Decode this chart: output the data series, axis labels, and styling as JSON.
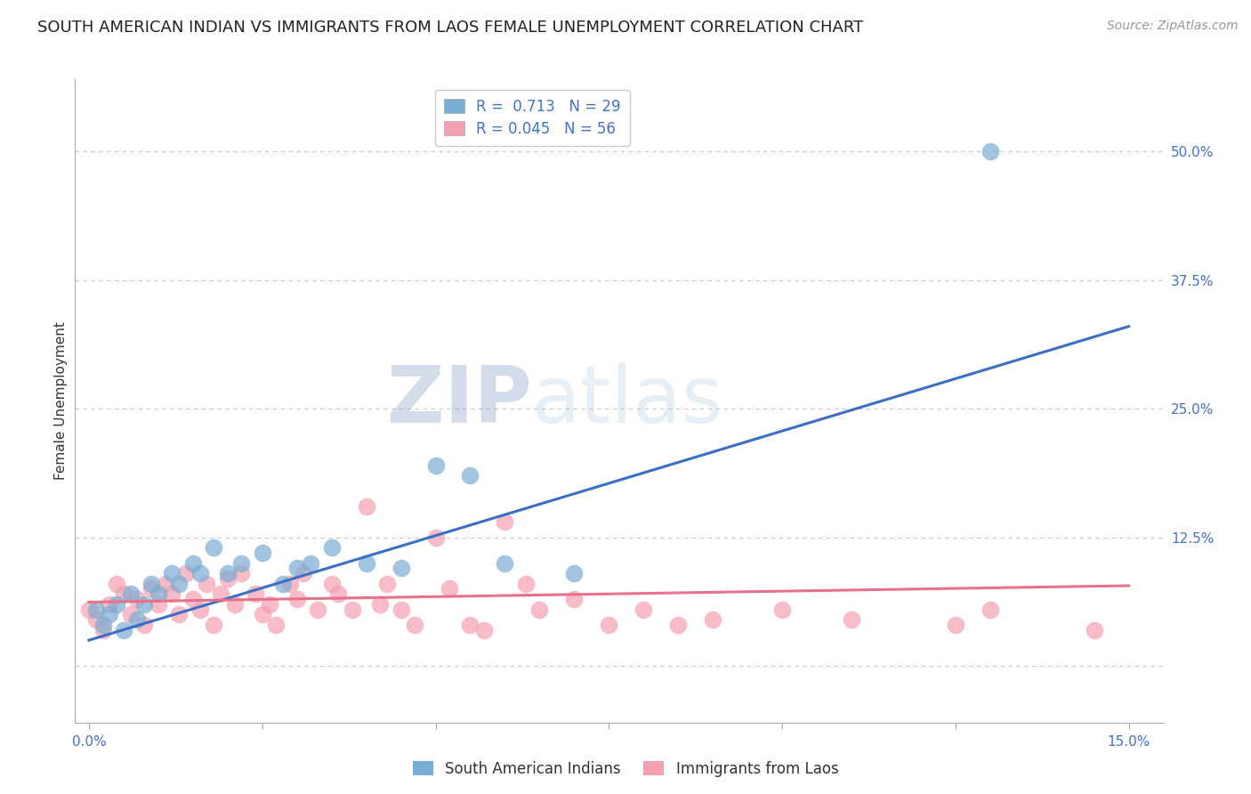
{
  "title": "SOUTH AMERICAN INDIAN VS IMMIGRANTS FROM LAOS FEMALE UNEMPLOYMENT CORRELATION CHART",
  "source": "Source: ZipAtlas.com",
  "ylabel": "Female Unemployment",
  "xlim": [
    -0.002,
    0.155
  ],
  "ylim": [
    -0.055,
    0.57
  ],
  "xticks": [
    0.0,
    0.025,
    0.05,
    0.075,
    0.1,
    0.125,
    0.15
  ],
  "xticklabels": [
    "0.0%",
    "",
    "",
    "",
    "",
    "",
    "15.0%"
  ],
  "ytick_positions": [
    0.0,
    0.125,
    0.25,
    0.375,
    0.5
  ],
  "ytick_labels": [
    "",
    "12.5%",
    "25.0%",
    "37.5%",
    "50.0%"
  ],
  "blue_R": "0.713",
  "blue_N": "29",
  "pink_R": "0.045",
  "pink_N": "56",
  "legend_label_blue": "South American Indians",
  "legend_label_pink": "Immigrants from Laos",
  "blue_color": "#7aadd4",
  "pink_color": "#f4a0b0",
  "blue_line_color": "#3a6fc4",
  "pink_line_color": "#e8708a",
  "watermark_zip": "ZIP",
  "watermark_atlas": "atlas",
  "background_color": "#ffffff",
  "grid_color": "#c8c8c8",
  "blue_scatter_x": [
    0.001,
    0.002,
    0.003,
    0.004,
    0.005,
    0.006,
    0.007,
    0.008,
    0.009,
    0.01,
    0.012,
    0.013,
    0.015,
    0.016,
    0.018,
    0.02,
    0.022,
    0.025,
    0.028,
    0.03,
    0.032,
    0.035,
    0.04,
    0.045,
    0.05,
    0.055,
    0.06,
    0.07,
    0.13
  ],
  "blue_scatter_y": [
    0.055,
    0.04,
    0.05,
    0.06,
    0.035,
    0.07,
    0.045,
    0.06,
    0.08,
    0.07,
    0.09,
    0.08,
    0.1,
    0.09,
    0.115,
    0.09,
    0.1,
    0.11,
    0.08,
    0.095,
    0.1,
    0.115,
    0.1,
    0.095,
    0.195,
    0.185,
    0.1,
    0.09,
    0.5
  ],
  "pink_scatter_x": [
    0.0,
    0.001,
    0.002,
    0.003,
    0.004,
    0.005,
    0.006,
    0.007,
    0.008,
    0.009,
    0.01,
    0.011,
    0.012,
    0.013,
    0.014,
    0.015,
    0.016,
    0.017,
    0.018,
    0.019,
    0.02,
    0.021,
    0.022,
    0.024,
    0.025,
    0.026,
    0.027,
    0.029,
    0.03,
    0.031,
    0.033,
    0.035,
    0.036,
    0.038,
    0.04,
    0.042,
    0.043,
    0.045,
    0.047,
    0.05,
    0.052,
    0.055,
    0.057,
    0.06,
    0.063,
    0.065,
    0.07,
    0.075,
    0.08,
    0.085,
    0.09,
    0.1,
    0.11,
    0.125,
    0.13,
    0.145
  ],
  "pink_scatter_y": [
    0.055,
    0.045,
    0.035,
    0.06,
    0.08,
    0.07,
    0.05,
    0.065,
    0.04,
    0.075,
    0.06,
    0.08,
    0.07,
    0.05,
    0.09,
    0.065,
    0.055,
    0.08,
    0.04,
    0.07,
    0.085,
    0.06,
    0.09,
    0.07,
    0.05,
    0.06,
    0.04,
    0.08,
    0.065,
    0.09,
    0.055,
    0.08,
    0.07,
    0.055,
    0.155,
    0.06,
    0.08,
    0.055,
    0.04,
    0.125,
    0.075,
    0.04,
    0.035,
    0.14,
    0.08,
    0.055,
    0.065,
    0.04,
    0.055,
    0.04,
    0.045,
    0.055,
    0.045,
    0.04,
    0.055,
    0.035
  ],
  "blue_line_x": [
    0.0,
    0.15
  ],
  "blue_line_y": [
    0.025,
    0.33
  ],
  "pink_line_x": [
    0.0,
    0.15
  ],
  "pink_line_y": [
    0.062,
    0.078
  ],
  "title_fontsize": 13,
  "axis_label_fontsize": 11,
  "tick_fontsize": 11,
  "legend_fontsize": 12,
  "source_fontsize": 10
}
